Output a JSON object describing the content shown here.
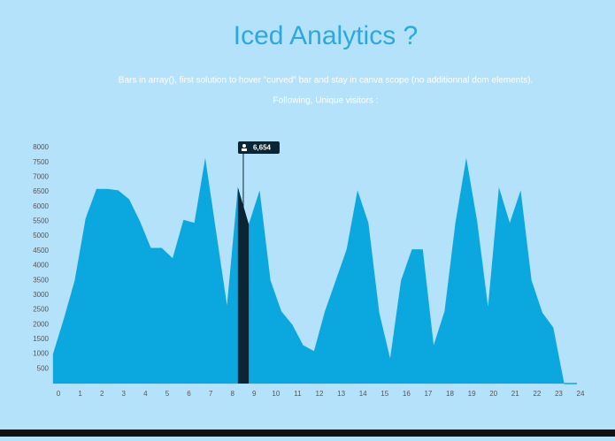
{
  "chart_data": {
    "type": "area",
    "title": "Iced Analytics ?",
    "subtitle": [
      "Bars in array(), first solution to hover \"curved\" bar and stay in canva scope (no additionnal dom elements).",
      "Following, Unique visitors :"
    ],
    "color": "#0aa8de",
    "highlight_color": "#0c2533",
    "x": [
      -0.25,
      0.25,
      0.75,
      1.25,
      1.75,
      2.25,
      2.75,
      3.25,
      3.75,
      4.25,
      4.75,
      5.25,
      5.75,
      6.25,
      6.75,
      7.25,
      7.75,
      8.25,
      8.75,
      9.25,
      9.75,
      10.25,
      10.75,
      11.25,
      11.75,
      12.25,
      12.75,
      13.25,
      13.75,
      14.25,
      14.75,
      15.25,
      15.75,
      16.25,
      16.75,
      17.25,
      17.75,
      18.25,
      18.75,
      19.25,
      19.75,
      20.25,
      20.75,
      21.25,
      21.75,
      22.25,
      22.75,
      23.25
    ],
    "values": [
      1000,
      2200,
      3500,
      5600,
      6600,
      6600,
      6550,
      6250,
      5500,
      4600,
      4600,
      4250,
      5550,
      5450,
      7650,
      5150,
      2650,
      6654,
      5400,
      6550,
      3500,
      2450,
      2000,
      1300,
      1100,
      2450,
      3500,
      4550,
      6550,
      5450,
      2400,
      850,
      3500,
      4550,
      4550,
      1300,
      2450,
      5450,
      7650,
      5500,
      2600,
      6650,
      5450,
      6550,
      3500,
      2400,
      1900,
      0
    ],
    "tooltip": {
      "x": 8.5,
      "value": 6654,
      "label": "6,654"
    },
    "xlim": [
      -0.25,
      24
    ],
    "xticks": [
      0,
      1,
      2,
      3,
      4,
      5,
      6,
      7,
      8,
      9,
      10,
      11,
      12,
      13,
      14,
      15,
      16,
      17,
      18,
      19,
      20,
      21,
      22,
      23,
      24
    ],
    "ylim": [
      0,
      8000
    ],
    "yticks": [
      500,
      1000,
      1500,
      2000,
      2500,
      3000,
      3500,
      4000,
      4500,
      5000,
      5500,
      6000,
      6500,
      7000,
      7500,
      8000
    ]
  }
}
